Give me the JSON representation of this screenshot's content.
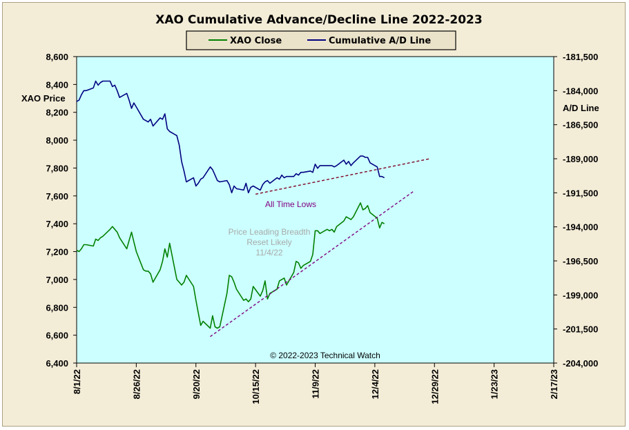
{
  "chart_data": {
    "type": "line",
    "title": "XAO Cumulative Advance/Decline Line 2022-2023",
    "ylabel_left": "XAO Price",
    "ylabel_right": "A/D Line",
    "x_ticks": [
      "8/1/22",
      "8/26/22",
      "9/20/22",
      "10/15/22",
      "11/9/22",
      "12/4/22",
      "12/29/22",
      "1/23/23",
      "2/17/23"
    ],
    "xlim": [
      "2022-08-01",
      "2023-02-17"
    ],
    "ylim_left": [
      6400,
      8600
    ],
    "y_ticks_left": [
      "6,400",
      "6,600",
      "6,800",
      "7,000",
      "7,200",
      "7,400",
      "7,600",
      "7,800",
      "8,000",
      "8,200",
      "8,400",
      "8,600"
    ],
    "ylim_right": [
      -204000,
      -181500
    ],
    "y_ticks_right": [
      "-204,000",
      "-201,500",
      "-199,000",
      "-196,500",
      "-194,000",
      "-191,500",
      "-189,000",
      "-186,500",
      "-184,000",
      "-181,500"
    ],
    "grid": false,
    "legend_position": "top",
    "colors": {
      "plot_bg": "#ccffff",
      "frame_bg": "#f3ecd7",
      "xao": "#008000",
      "ad": "#000080",
      "trend": "#800020",
      "annot_low": "#800080",
      "annot_lead": "#a9a9a9"
    },
    "series": [
      {
        "name": "XAO Close",
        "axis": "left",
        "x": [
          "2022-08-01",
          "2022-08-02",
          "2022-08-03",
          "2022-08-04",
          "2022-08-05",
          "2022-08-08",
          "2022-08-09",
          "2022-08-10",
          "2022-08-11",
          "2022-08-12",
          "2022-08-15",
          "2022-08-16",
          "2022-08-17",
          "2022-08-18",
          "2022-08-19",
          "2022-08-22",
          "2022-08-23",
          "2022-08-24",
          "2022-08-25",
          "2022-08-26",
          "2022-08-29",
          "2022-08-30",
          "2022-08-31",
          "2022-09-01",
          "2022-09-02",
          "2022-09-05",
          "2022-09-06",
          "2022-09-07",
          "2022-09-08",
          "2022-09-09",
          "2022-09-12",
          "2022-09-13",
          "2022-09-14",
          "2022-09-15",
          "2022-09-16",
          "2022-09-19",
          "2022-09-20",
          "2022-09-21",
          "2022-09-22",
          "2022-09-23",
          "2022-09-26",
          "2022-09-27",
          "2022-09-28",
          "2022-09-29",
          "2022-09-30",
          "2022-10-03",
          "2022-10-04",
          "2022-10-05",
          "2022-10-06",
          "2022-10-07",
          "2022-10-10",
          "2022-10-11",
          "2022-10-12",
          "2022-10-13",
          "2022-10-14",
          "2022-10-17",
          "2022-10-18",
          "2022-10-19",
          "2022-10-20",
          "2022-10-21",
          "2022-10-24",
          "2022-10-25",
          "2022-10-26",
          "2022-10-27",
          "2022-10-28",
          "2022-10-31",
          "2022-11-01",
          "2022-11-02",
          "2022-11-03",
          "2022-11-04",
          "2022-11-07",
          "2022-11-08",
          "2022-11-09",
          "2022-11-10",
          "2022-11-11",
          "2022-11-14",
          "2022-11-15",
          "2022-11-16",
          "2022-11-17",
          "2022-11-18",
          "2022-11-21",
          "2022-11-22",
          "2022-11-23",
          "2022-11-24",
          "2022-11-25",
          "2022-11-28",
          "2022-11-29",
          "2022-11-30",
          "2022-12-01",
          "2022-12-02",
          "2022-12-05",
          "2022-12-06",
          "2022-12-07",
          "2022-12-08"
        ],
        "values": [
          7210,
          7200,
          7220,
          7250,
          7250,
          7240,
          7290,
          7280,
          7300,
          7310,
          7360,
          7380,
          7360,
          7340,
          7300,
          7220,
          7280,
          7340,
          7270,
          7200,
          7070,
          7060,
          7060,
          7040,
          6980,
          7070,
          7130,
          7220,
          7160,
          7260,
          7000,
          6980,
          6960,
          6980,
          7030,
          6950,
          6850,
          6760,
          6670,
          6700,
          6650,
          6740,
          6660,
          6650,
          6660,
          6900,
          7030,
          7020,
          6980,
          6930,
          6850,
          6860,
          6840,
          6860,
          6950,
          6880,
          6920,
          6990,
          6860,
          6900,
          6930,
          6990,
          7000,
          7010,
          6960,
          7050,
          7130,
          7120,
          7080,
          7100,
          7130,
          7180,
          7350,
          7350,
          7330,
          7360,
          7350,
          7360,
          7340,
          7380,
          7420,
          7450,
          7440,
          7430,
          7450,
          7550,
          7500,
          7510,
          7530,
          7480,
          7440,
          7370,
          7410,
          7400
        ]
      },
      {
        "name": "Cumulative A/D Line",
        "axis": "right",
        "x": [
          "2022-08-01",
          "2022-08-02",
          "2022-08-03",
          "2022-08-04",
          "2022-08-05",
          "2022-08-08",
          "2022-08-09",
          "2022-08-10",
          "2022-08-11",
          "2022-08-12",
          "2022-08-15",
          "2022-08-16",
          "2022-08-17",
          "2022-08-18",
          "2022-08-19",
          "2022-08-22",
          "2022-08-23",
          "2022-08-24",
          "2022-08-25",
          "2022-08-26",
          "2022-08-29",
          "2022-08-30",
          "2022-08-31",
          "2022-09-01",
          "2022-09-02",
          "2022-09-05",
          "2022-09-06",
          "2022-09-07",
          "2022-09-08",
          "2022-09-09",
          "2022-09-12",
          "2022-09-13",
          "2022-09-14",
          "2022-09-15",
          "2022-09-16",
          "2022-09-19",
          "2022-09-20",
          "2022-09-21",
          "2022-09-22",
          "2022-09-23",
          "2022-09-26",
          "2022-09-27",
          "2022-09-28",
          "2022-09-29",
          "2022-09-30",
          "2022-10-03",
          "2022-10-04",
          "2022-10-05",
          "2022-10-06",
          "2022-10-07",
          "2022-10-10",
          "2022-10-11",
          "2022-10-12",
          "2022-10-13",
          "2022-10-14",
          "2022-10-17",
          "2022-10-18",
          "2022-10-19",
          "2022-10-20",
          "2022-10-21",
          "2022-10-24",
          "2022-10-25",
          "2022-10-26",
          "2022-10-27",
          "2022-10-28",
          "2022-10-31",
          "2022-11-01",
          "2022-11-02",
          "2022-11-03",
          "2022-11-04",
          "2022-11-07",
          "2022-11-08",
          "2022-11-09",
          "2022-11-10",
          "2022-11-11",
          "2022-11-14",
          "2022-11-15",
          "2022-11-16",
          "2022-11-17",
          "2022-11-18",
          "2022-11-21",
          "2022-11-22",
          "2022-11-23",
          "2022-11-24",
          "2022-11-25",
          "2022-11-28",
          "2022-11-29",
          "2022-11-30",
          "2022-12-01",
          "2022-12-02",
          "2022-12-05",
          "2022-12-06",
          "2022-12-07",
          "2022-12-08"
        ],
        "values": [
          -184800,
          -184700,
          -184300,
          -184000,
          -184000,
          -183800,
          -183300,
          -183600,
          -183400,
          -183300,
          -183300,
          -183700,
          -183600,
          -184000,
          -184500,
          -184200,
          -184700,
          -185300,
          -184900,
          -185200,
          -186100,
          -186200,
          -186300,
          -186100,
          -186600,
          -186000,
          -186100,
          -185700,
          -186800,
          -187000,
          -187300,
          -188000,
          -189200,
          -189900,
          -190700,
          -190400,
          -191000,
          -190800,
          -190500,
          -190400,
          -189600,
          -189800,
          -190200,
          -190600,
          -190700,
          -190600,
          -190900,
          -191500,
          -191000,
          -191200,
          -191300,
          -190800,
          -191500,
          -191100,
          -191000,
          -191300,
          -190900,
          -190700,
          -190600,
          -190800,
          -190400,
          -190500,
          -190200,
          -190400,
          -190300,
          -190300,
          -190100,
          -190200,
          -190000,
          -190000,
          -189900,
          -190000,
          -189400,
          -189700,
          -189500,
          -189500,
          -189500,
          -189500,
          -189600,
          -189500,
          -189100,
          -189400,
          -189200,
          -189500,
          -189300,
          -188800,
          -188800,
          -188900,
          -188900,
          -189300,
          -189600,
          -190300,
          -190300,
          -190400
        ]
      }
    ],
    "trendlines": [
      {
        "name": "ad-trend",
        "axis": "right",
        "from": [
          "2022-10-15",
          -191600
        ],
        "to": [
          "2022-12-27",
          -189000
        ]
      },
      {
        "name": "price-trend",
        "axis": "left",
        "from": [
          "2022-09-26",
          6590
        ],
        "to": [
          "2022-12-20",
          7630
        ]
      }
    ],
    "annotations": {
      "all_time_lows": "All Time Lows",
      "price_leading_1": "Price Leading Breadth",
      "price_leading_2": "Reset Likely",
      "price_leading_3": "11/4/22",
      "copyright": "© 2022-2023  Technical Watch"
    }
  }
}
